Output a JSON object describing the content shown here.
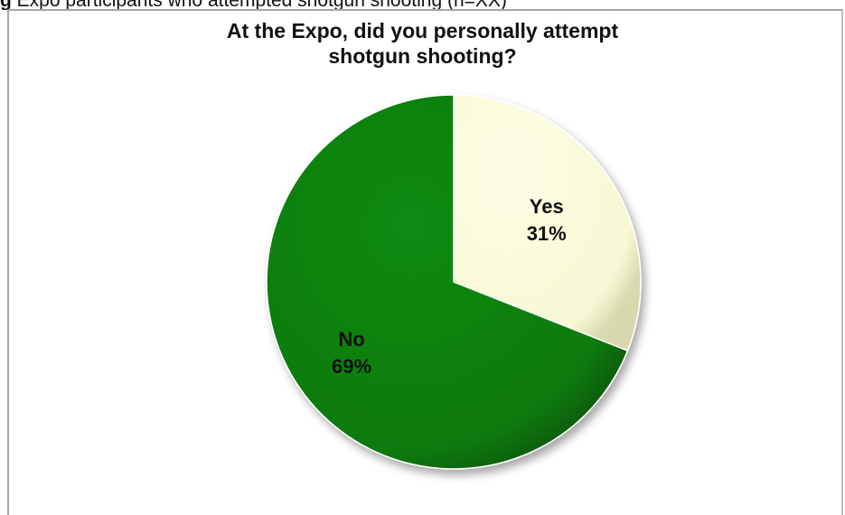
{
  "caption": {
    "prefix": "g",
    "text": "     Expo participants who attempted shotgun shooting (n=XX)"
  },
  "chart_data": {
    "type": "pie",
    "title_lines": [
      "At the Expo, did you personally attempt",
      "shotgun shooting?"
    ],
    "slices": [
      {
        "label": "Yes",
        "value": 31,
        "value_label": "31%",
        "color": "#fbfbdc"
      },
      {
        "label": "No",
        "value": 69,
        "value_label": "69%",
        "color": "#0a7c0e"
      }
    ],
    "start_position": "12 o'clock, clockwise",
    "legend": "none",
    "data_labels": "inside slices"
  }
}
